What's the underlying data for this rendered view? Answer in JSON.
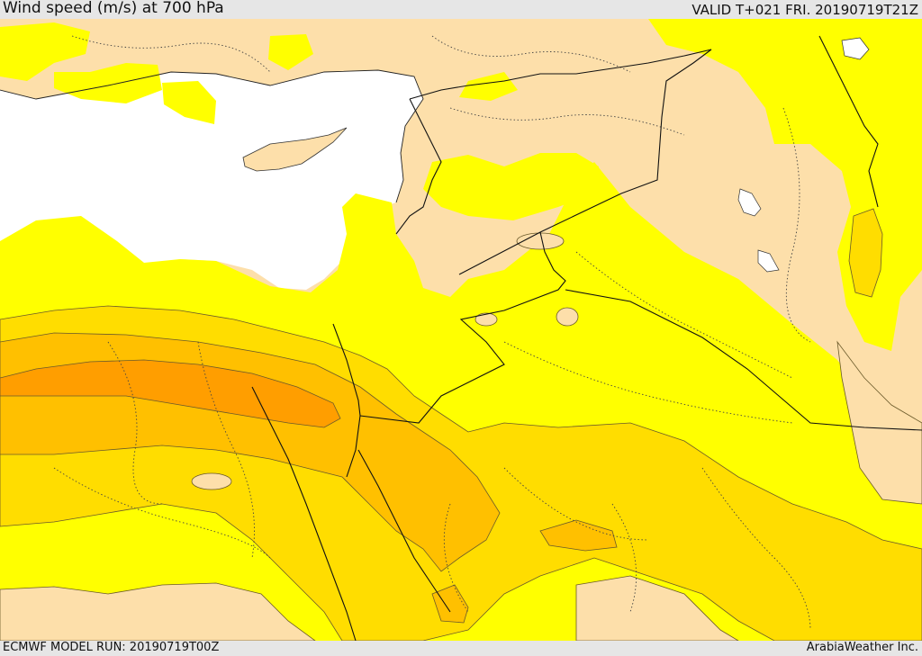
{
  "header": {
    "title": "Wind speed (m/s) at 700 hPa",
    "valid_time": "VALID T+021 FRI. 20190719T21Z"
  },
  "footer": {
    "model_run": "ECMWF MODEL RUN: 20190719T00Z",
    "credit": "ArabiaWeather Inc."
  },
  "map": {
    "colors": {
      "land_calm": "#fddfaa",
      "sea": "#ffffff",
      "band_yellow": "#ffff00",
      "band_gold": "#ffdd00",
      "band_amber": "#ffc000",
      "band_orange": "#ff9e00",
      "contour": "#6b5a2a",
      "border": "#111111"
    }
  }
}
